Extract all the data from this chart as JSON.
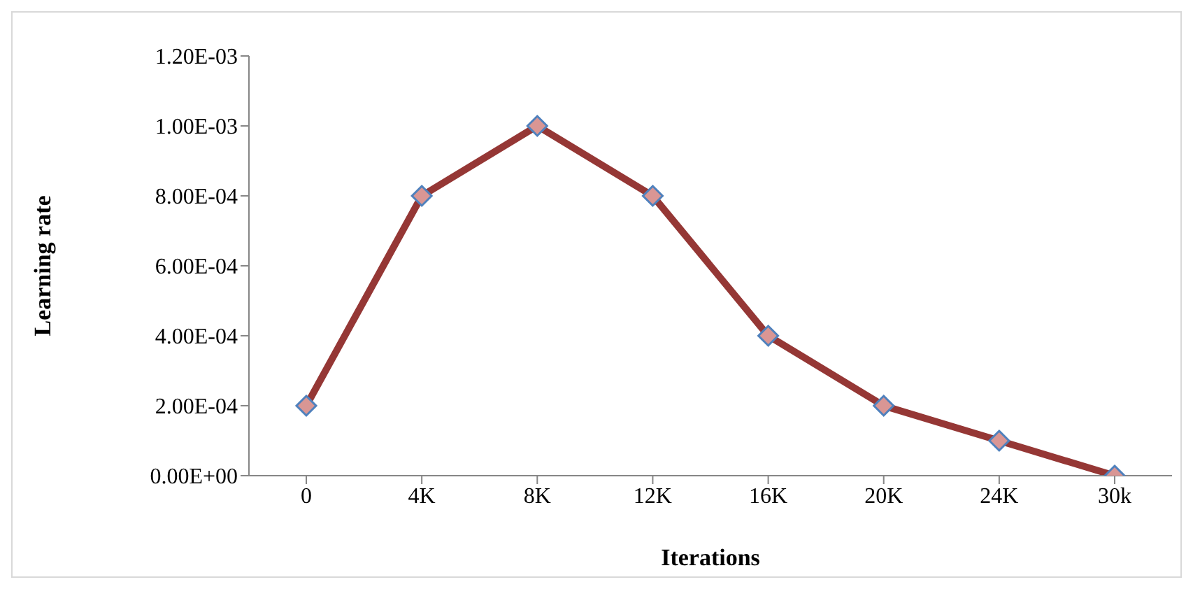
{
  "chart_data": {
    "type": "line",
    "xlabel": "Iterations",
    "ylabel": "Learning rate",
    "categories": [
      "0",
      "4K",
      "8K",
      "12K",
      "16K",
      "20K",
      "24K",
      "30k"
    ],
    "series": [
      {
        "color": "#953735",
        "values": [
          0.0002,
          0.0008,
          0.001,
          0.0008,
          0.0004,
          0.0002,
          0.0001,
          0
        ]
      }
    ],
    "ylim": [
      0,
      0.0012
    ],
    "yticks": [
      {
        "value": 0,
        "label": "0.00E+00"
      },
      {
        "value": 0.0002,
        "label": "2.00E-04"
      },
      {
        "value": 0.0004,
        "label": "4.00E-04"
      },
      {
        "value": 0.0006,
        "label": "6.00E-04"
      },
      {
        "value": 0.0008,
        "label": "8.00E-04"
      },
      {
        "value": 0.001,
        "label": "1.00E-03"
      },
      {
        "value": 0.0012,
        "label": "1.20E-03"
      }
    ],
    "grid": false,
    "legend": false,
    "marker": "diamond",
    "line_style": "solid"
  }
}
